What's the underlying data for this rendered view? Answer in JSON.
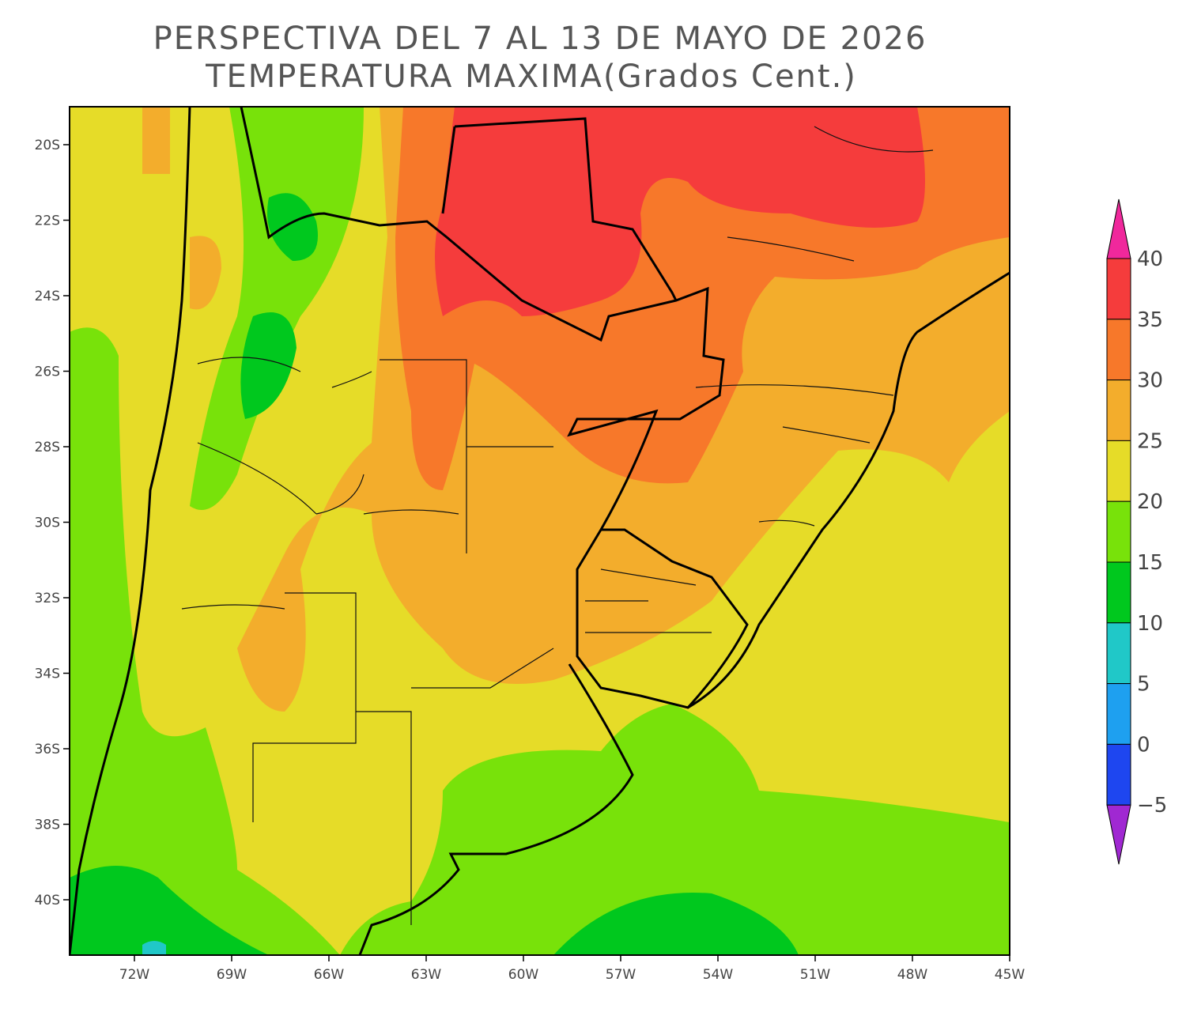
{
  "title": [
    "PERSPECTIVA DEL 7 AL 13 DE MAYO DE 2026",
    "TEMPERATURA MAXIMA(Grados Cent.)"
  ],
  "lat_labels": [
    "20S",
    "22S",
    "24S",
    "26S",
    "28S",
    "30S",
    "32S",
    "34S",
    "36S",
    "38S",
    "40S"
  ],
  "lon_labels": [
    "72W",
    "69W",
    "66W",
    "63W",
    "60W",
    "57W",
    "54W",
    "51W",
    "48W",
    "45W"
  ],
  "colorbar": {
    "labels": [
      "40",
      "35",
      "30",
      "25",
      "20",
      "15",
      "10",
      "5",
      "0",
      "−5"
    ],
    "colors": [
      "#f0289c",
      "#f53c3c",
      "#f7782a",
      "#f3ad2c",
      "#e6dc28",
      "#78e20a",
      "#00c81e",
      "#20c8c8",
      "#1ea0f0",
      "#1e46f0",
      "#a028d2"
    ]
  }
}
